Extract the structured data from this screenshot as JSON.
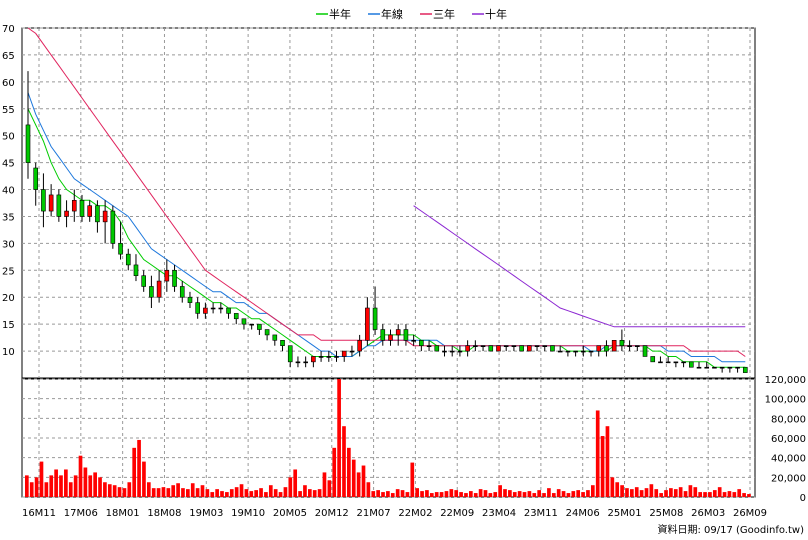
{
  "chart_data": [
    {
      "type": "candlestick",
      "ylim": [
        5,
        70
      ],
      "y_ticks": [
        "10",
        "15",
        "20",
        "25",
        "30",
        "35",
        "40",
        "45",
        "50",
        "55",
        "60",
        "65",
        "70"
      ],
      "x_tick_labels": [
        "16M11",
        "17M06",
        "18M01",
        "18M08",
        "19M03",
        "19M10",
        "20M05",
        "20M12",
        "21M07",
        "22M02",
        "22M09",
        "23M04",
        "23M11",
        "24M06",
        "25M01",
        "25M08",
        "26M03",
        "26M09"
      ],
      "grid": true,
      "legend_position": "top-center",
      "legend": [
        {
          "name": "半年",
          "color": "#00cc00"
        },
        {
          "name": "年線",
          "color": "#1e78dc"
        },
        {
          "name": "三年",
          "color": "#e0245e"
        },
        {
          "name": "十年",
          "color": "#8c28d2"
        }
      ],
      "candle_colors": {
        "up": "#ff0000",
        "down": "#00c800",
        "flat": "#000000"
      },
      "candles_ohlc": [
        [
          52,
          62,
          42,
          45
        ],
        [
          44,
          45,
          37,
          40
        ],
        [
          40,
          43,
          33,
          36
        ],
        [
          36,
          41,
          35,
          39
        ],
        [
          39,
          40,
          34,
          35
        ],
        [
          35,
          38,
          33,
          36
        ],
        [
          36,
          40,
          34,
          38
        ],
        [
          38,
          39,
          34,
          35
        ],
        [
          35,
          38,
          34,
          37
        ],
        [
          37,
          38,
          32,
          34
        ],
        [
          34,
          38,
          30,
          36
        ],
        [
          36,
          37,
          29,
          30
        ],
        [
          30,
          34,
          27,
          28
        ],
        [
          28,
          29,
          25,
          26
        ],
        [
          26,
          28,
          23,
          24
        ],
        [
          24,
          25,
          21,
          22
        ],
        [
          22,
          24,
          18,
          20
        ],
        [
          20,
          25,
          19,
          23
        ],
        [
          23,
          27,
          21,
          25
        ],
        [
          25,
          26,
          21,
          22
        ],
        [
          22,
          23,
          19,
          20
        ],
        [
          20,
          21,
          18,
          19
        ],
        [
          19,
          20,
          16,
          17
        ],
        [
          17,
          19,
          16,
          18
        ],
        [
          18,
          19,
          17,
          18
        ],
        [
          18,
          19,
          17,
          18
        ],
        [
          18,
          18,
          16,
          17
        ],
        [
          17,
          17,
          15,
          16
        ],
        [
          16,
          16,
          14,
          15
        ],
        [
          15,
          15,
          14,
          15
        ],
        [
          15,
          15,
          13,
          14
        ],
        [
          14,
          14,
          12,
          13
        ],
        [
          13,
          13,
          11,
          12
        ],
        [
          12,
          12,
          10,
          11
        ],
        [
          11,
          11,
          7,
          8
        ],
        [
          8,
          9,
          7,
          8
        ],
        [
          8,
          9,
          7,
          8
        ],
        [
          8,
          9,
          7,
          9
        ],
        [
          9,
          10,
          8,
          9
        ],
        [
          9,
          10,
          8,
          9
        ],
        [
          9,
          10,
          8,
          9
        ],
        [
          9,
          10,
          8,
          10
        ],
        [
          10,
          11,
          9,
          10
        ],
        [
          10,
          13,
          9,
          12
        ],
        [
          12,
          20,
          11,
          18
        ],
        [
          18,
          22,
          13,
          14
        ],
        [
          14,
          15,
          11,
          12
        ],
        [
          12,
          14,
          11,
          13
        ],
        [
          13,
          15,
          11,
          14
        ],
        [
          14,
          15,
          11,
          12
        ],
        [
          12,
          13,
          11,
          12
        ],
        [
          12,
          12,
          10,
          11
        ],
        [
          11,
          12,
          10,
          11
        ],
        [
          11,
          11,
          10,
          10
        ],
        [
          10,
          11,
          9,
          10
        ],
        [
          10,
          11,
          9,
          10
        ],
        [
          10,
          11,
          9,
          10
        ],
        [
          10,
          12,
          9,
          11
        ],
        [
          11,
          12,
          10,
          11
        ],
        [
          11,
          11,
          10,
          11
        ],
        [
          11,
          11,
          10,
          10
        ],
        [
          10,
          11,
          10,
          11
        ],
        [
          11,
          11,
          10,
          11
        ],
        [
          11,
          11,
          10,
          11
        ],
        [
          11,
          11,
          10,
          10
        ],
        [
          10,
          11,
          10,
          11
        ],
        [
          11,
          11,
          10,
          11
        ],
        [
          11,
          11,
          10,
          11
        ],
        [
          11,
          11,
          10,
          10
        ],
        [
          10,
          11,
          10,
          10
        ],
        [
          10,
          10,
          9,
          10
        ],
        [
          10,
          10,
          9,
          10
        ],
        [
          10,
          11,
          9,
          10
        ],
        [
          10,
          10,
          9,
          10
        ],
        [
          10,
          11,
          9,
          11
        ],
        [
          11,
          12,
          9,
          10
        ],
        [
          10,
          12,
          10,
          12
        ],
        [
          12,
          14,
          10,
          11
        ],
        [
          11,
          12,
          10,
          11
        ],
        [
          11,
          11,
          10,
          11
        ],
        [
          11,
          11,
          9,
          9
        ],
        [
          9,
          9,
          8,
          8
        ],
        [
          8,
          9,
          8,
          8
        ],
        [
          8,
          9,
          8,
          8
        ],
        [
          8,
          8,
          7,
          8
        ],
        [
          8,
          8,
          7,
          8
        ],
        [
          8,
          8,
          7,
          7
        ],
        [
          7,
          8,
          7,
          7
        ],
        [
          7,
          8,
          7,
          7
        ],
        [
          7,
          7,
          7,
          7
        ],
        [
          7,
          7,
          6,
          7
        ],
        [
          7,
          7,
          6,
          7
        ],
        [
          7,
          7,
          6,
          7
        ],
        [
          7,
          7,
          6,
          6
        ]
      ],
      "moving_averages": [
        {
          "name": "半年",
          "start_index": 0,
          "values": [
            55,
            52,
            49,
            45,
            42,
            40,
            39,
            38,
            38,
            37,
            37,
            36,
            34,
            31,
            29,
            27,
            26,
            25,
            24,
            24,
            23,
            22,
            21,
            20,
            19,
            19,
            18,
            18,
            17,
            16,
            16,
            15,
            14,
            13,
            12,
            11,
            10,
            9,
            9,
            9,
            9,
            9,
            9,
            10,
            11,
            12,
            13,
            13,
            13,
            13,
            13,
            12,
            12,
            11,
            11,
            11,
            10,
            10,
            11,
            11,
            11,
            11,
            11,
            11,
            11,
            11,
            11,
            11,
            11,
            11,
            10,
            10,
            10,
            10,
            10,
            10,
            11,
            11,
            11,
            11,
            11,
            10,
            10,
            9,
            9,
            8,
            8,
            8,
            8,
            7,
            7,
            7,
            7,
            7
          ]
        },
        {
          "name": "年線",
          "start_index": 0,
          "values": [
            58,
            54,
            51,
            48,
            46,
            44,
            42,
            41,
            40,
            39,
            38,
            37,
            36,
            35,
            33,
            31,
            29,
            28,
            27,
            26,
            25,
            24,
            23,
            22,
            21,
            21,
            20,
            19,
            19,
            18,
            17,
            17,
            16,
            15,
            14,
            13,
            12,
            11,
            10,
            10,
            9,
            9,
            9,
            10,
            11,
            11,
            12,
            12,
            12,
            12,
            12,
            12,
            12,
            12,
            11,
            11,
            11,
            11,
            11,
            11,
            11,
            11,
            11,
            11,
            11,
            11,
            11,
            11,
            11,
            11,
            11,
            11,
            11,
            10,
            10,
            11,
            11,
            11,
            11,
            11,
            11,
            11,
            11,
            10,
            10,
            10,
            9,
            9,
            9,
            9,
            8,
            8,
            8,
            8
          ]
        },
        {
          "name": "三年",
          "start_index": 0,
          "values": [
            70,
            69,
            67,
            65,
            63,
            61,
            59,
            57,
            55,
            53,
            51,
            49,
            47,
            45,
            43,
            41,
            39,
            37,
            35,
            33,
            31,
            29,
            27,
            25,
            24,
            23,
            22,
            21,
            20,
            19,
            18,
            17,
            16,
            15,
            14,
            13,
            13,
            13,
            12,
            12,
            12,
            12,
            12,
            12,
            12,
            12,
            12,
            12,
            12,
            12,
            11,
            11,
            11,
            11,
            11,
            11,
            11,
            11,
            11,
            11,
            11,
            11,
            11,
            11,
            11,
            11,
            11,
            11,
            11,
            11,
            11,
            11,
            11,
            11,
            11,
            11,
            11,
            11,
            11,
            11,
            11,
            11,
            11,
            11,
            11,
            11,
            10,
            10,
            10,
            10,
            10,
            10,
            10,
            9
          ]
        },
        {
          "name": "十年",
          "start_index": 50,
          "values": [
            37,
            36,
            35,
            34,
            33,
            32,
            31,
            30,
            29,
            28,
            27,
            26,
            25,
            24,
            23,
            22,
            21,
            20,
            19,
            18,
            17.5,
            17,
            16.5,
            16,
            15.5,
            15,
            14.5,
            14.5,
            14.5,
            14.5,
            14.5,
            14.5,
            14.5,
            14.5,
            14.5,
            14.5,
            14.5,
            14.5,
            14.5,
            14.5,
            14.5,
            14.5,
            14.5,
            14.5
          ]
        }
      ]
    },
    {
      "type": "bar",
      "ylim": [
        0,
        120000
      ],
      "y_ticks": [
        "0",
        "20,000",
        "40,000",
        "60,000",
        "80,000",
        "100,000",
        "120,000"
      ],
      "color": "#ff0000",
      "values": [
        22000,
        15000,
        20000,
        36000,
        15000,
        22000,
        28000,
        22000,
        28000,
        15000,
        22000,
        42000,
        30000,
        22000,
        25000,
        20000,
        15000,
        13000,
        12000,
        10000,
        9000,
        15000,
        50000,
        58000,
        36000,
        15000,
        9000,
        9000,
        10000,
        9000,
        12000,
        14000,
        9000,
        8000,
        14000,
        9000,
        12000,
        8000,
        5000,
        8000,
        6000,
        5000,
        8000,
        10000,
        13000,
        8000,
        6000,
        7000,
        9000,
        5000,
        12000,
        8000,
        5000,
        10000,
        20000,
        28000,
        6000,
        12000,
        8000,
        7000,
        8000,
        25000,
        17000,
        50000,
        120000,
        72000,
        50000,
        38000,
        25000,
        32000,
        15000,
        6000,
        7000,
        5000,
        6000,
        4000,
        8000,
        7000,
        5000,
        35000,
        9000,
        6000,
        7000,
        4000,
        5000,
        5000,
        6000,
        8000,
        7000,
        5000,
        4000,
        6000,
        4000,
        8000,
        7000,
        4000,
        5000,
        12000,
        8000,
        7000,
        5000,
        6000,
        5000,
        6000,
        4000,
        7000,
        4000,
        9000,
        4000,
        8000,
        6000,
        4000,
        6000,
        7000,
        5000,
        7000,
        12000,
        88000,
        62000,
        72000,
        20000,
        15000,
        12000,
        9000,
        8000,
        10000,
        7000,
        9000,
        13000,
        8000,
        4000,
        7000,
        9000,
        8000,
        10000,
        6000,
        12000,
        10000,
        5000,
        5000,
        5000,
        7000,
        10000,
        5000,
        6000,
        5000,
        8000,
        4000,
        3000
      ]
    }
  ],
  "source_label": "資料日期: 09/17 (Goodinfo.tw)"
}
